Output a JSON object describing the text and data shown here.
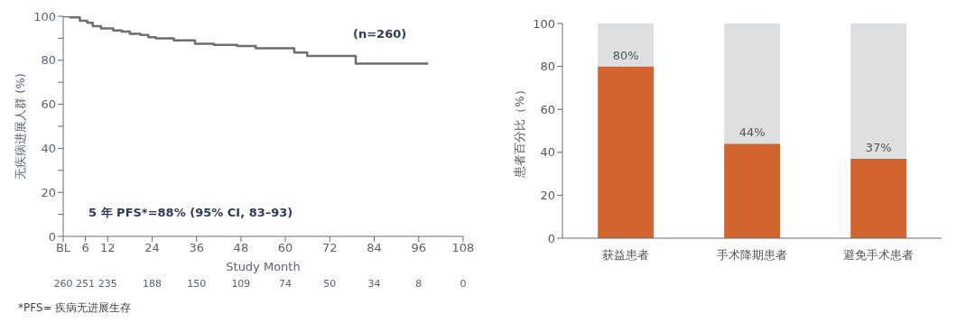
{
  "chart_data": [
    {
      "type": "step",
      "xlabel": "Study Month",
      "ylabel": "无疾病进展人群 (%)",
      "x": [
        0,
        1.8,
        4.5,
        6.5,
        8,
        10.2,
        13.5,
        15.8,
        18,
        20.9,
        23,
        25,
        29.9,
        35.6,
        40.7,
        47,
        52,
        62.4,
        65.9,
        79,
        98.6
      ],
      "series": [
        {
          "color": "#6d6e70",
          "values": [
            100,
            99.5,
            98,
            97,
            95.5,
            94.5,
            93.5,
            93,
            92,
            91.5,
            90.5,
            90,
            89,
            87.5,
            87,
            86.5,
            85.5,
            83.5,
            82,
            78.5,
            78.5
          ]
        }
      ],
      "xlim": [
        0,
        108
      ],
      "xticks": [
        {
          "value": 0,
          "label": "BL"
        },
        6,
        12,
        24,
        36,
        48,
        60,
        72,
        84,
        96,
        108
      ],
      "ylim": [
        0,
        100
      ],
      "yticks": [
        0,
        {
          "value": 10,
          "label": null
        },
        20,
        {
          "value": 30,
          "label": null
        },
        40,
        {
          "value": 50,
          "label": null
        },
        60,
        {
          "value": 70,
          "label": null
        },
        80,
        {
          "value": 90,
          "label": null
        },
        100
      ],
      "annotations": [
        "(n=260)",
        "5 年 PFS*=88% (95% CI, 83–93)",
        "*PFS= 疾病无进展生存",
        "260",
        "251",
        "235",
        "188",
        "150",
        "109",
        "74",
        "50",
        "34",
        "8",
        "0"
      ],
      "grid": false,
      "legend": false,
      "marker": "none",
      "line_style": "solid"
    },
    {
      "type": "bar",
      "ylabel": "患者百分比（%）",
      "categories": [
        "获益患者",
        "手术降期患者",
        "避免手术患者"
      ],
      "stacked": true,
      "series": [
        {
          "color": "#d2642f",
          "values": [
            80,
            44,
            37
          ],
          "value_labels": [
            "80%",
            "44%",
            "37%"
          ]
        },
        {
          "color": "#dedfe0",
          "values": [
            20,
            56,
            63
          ]
        }
      ],
      "ylim": [
        0,
        100
      ],
      "yticks": [
        0,
        20,
        40,
        60,
        80,
        100
      ],
      "grid": false,
      "legend": false
    }
  ]
}
